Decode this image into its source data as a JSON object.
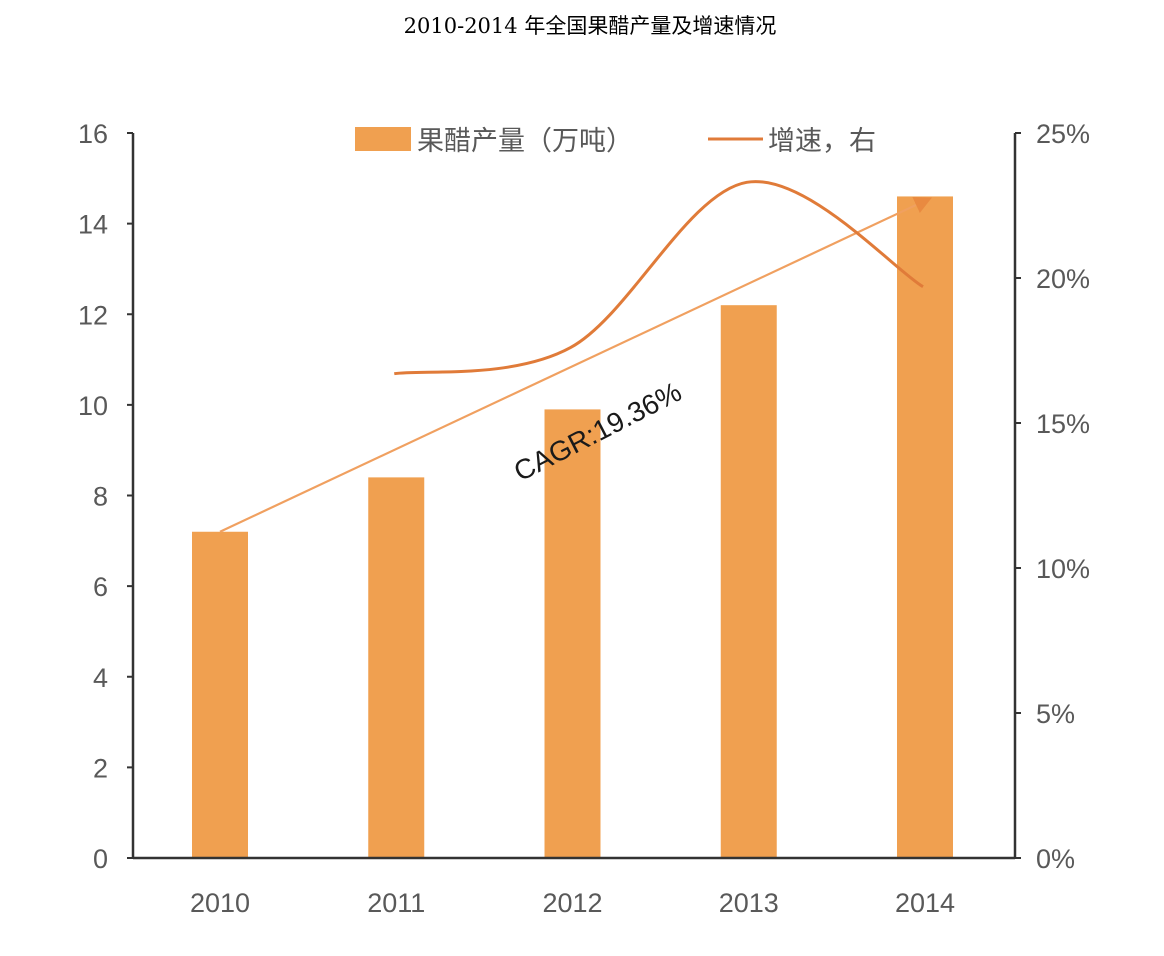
{
  "chart_data": {
    "type": "bar",
    "title": "2010-2014 年全国果醋产量及增速情况",
    "categories": [
      "2010",
      "2011",
      "2012",
      "2013",
      "2014"
    ],
    "series": [
      {
        "name": "果醋产量（万吨）",
        "type": "bar",
        "axis": "left",
        "color": "#F0A050",
        "values": [
          7.2,
          8.4,
          9.9,
          12.2,
          14.6
        ]
      },
      {
        "name": "增速，右",
        "type": "line",
        "axis": "right",
        "color": "#E07B39",
        "unit": "%",
        "values": [
          null,
          16.7,
          17.6,
          23.3,
          19.7
        ]
      }
    ],
    "left_axis": {
      "min": 0,
      "max": 16,
      "ticks": [
        "0",
        "2",
        "4",
        "6",
        "8",
        "10",
        "12",
        "14",
        "16"
      ]
    },
    "right_axis": {
      "min": 0,
      "max": 25,
      "unit": "%",
      "ticks": [
        "0%",
        "5%",
        "10%",
        "15%",
        "20%",
        "25%"
      ]
    },
    "annotations": [
      {
        "text": "CAGR:19.36%",
        "type": "trend-arrow",
        "from_category": "2010",
        "to_category": "2014",
        "from_value": 7.2,
        "to_value": 14.6,
        "color": "#F0A060"
      }
    ],
    "legend_position": "top",
    "grid": false
  }
}
